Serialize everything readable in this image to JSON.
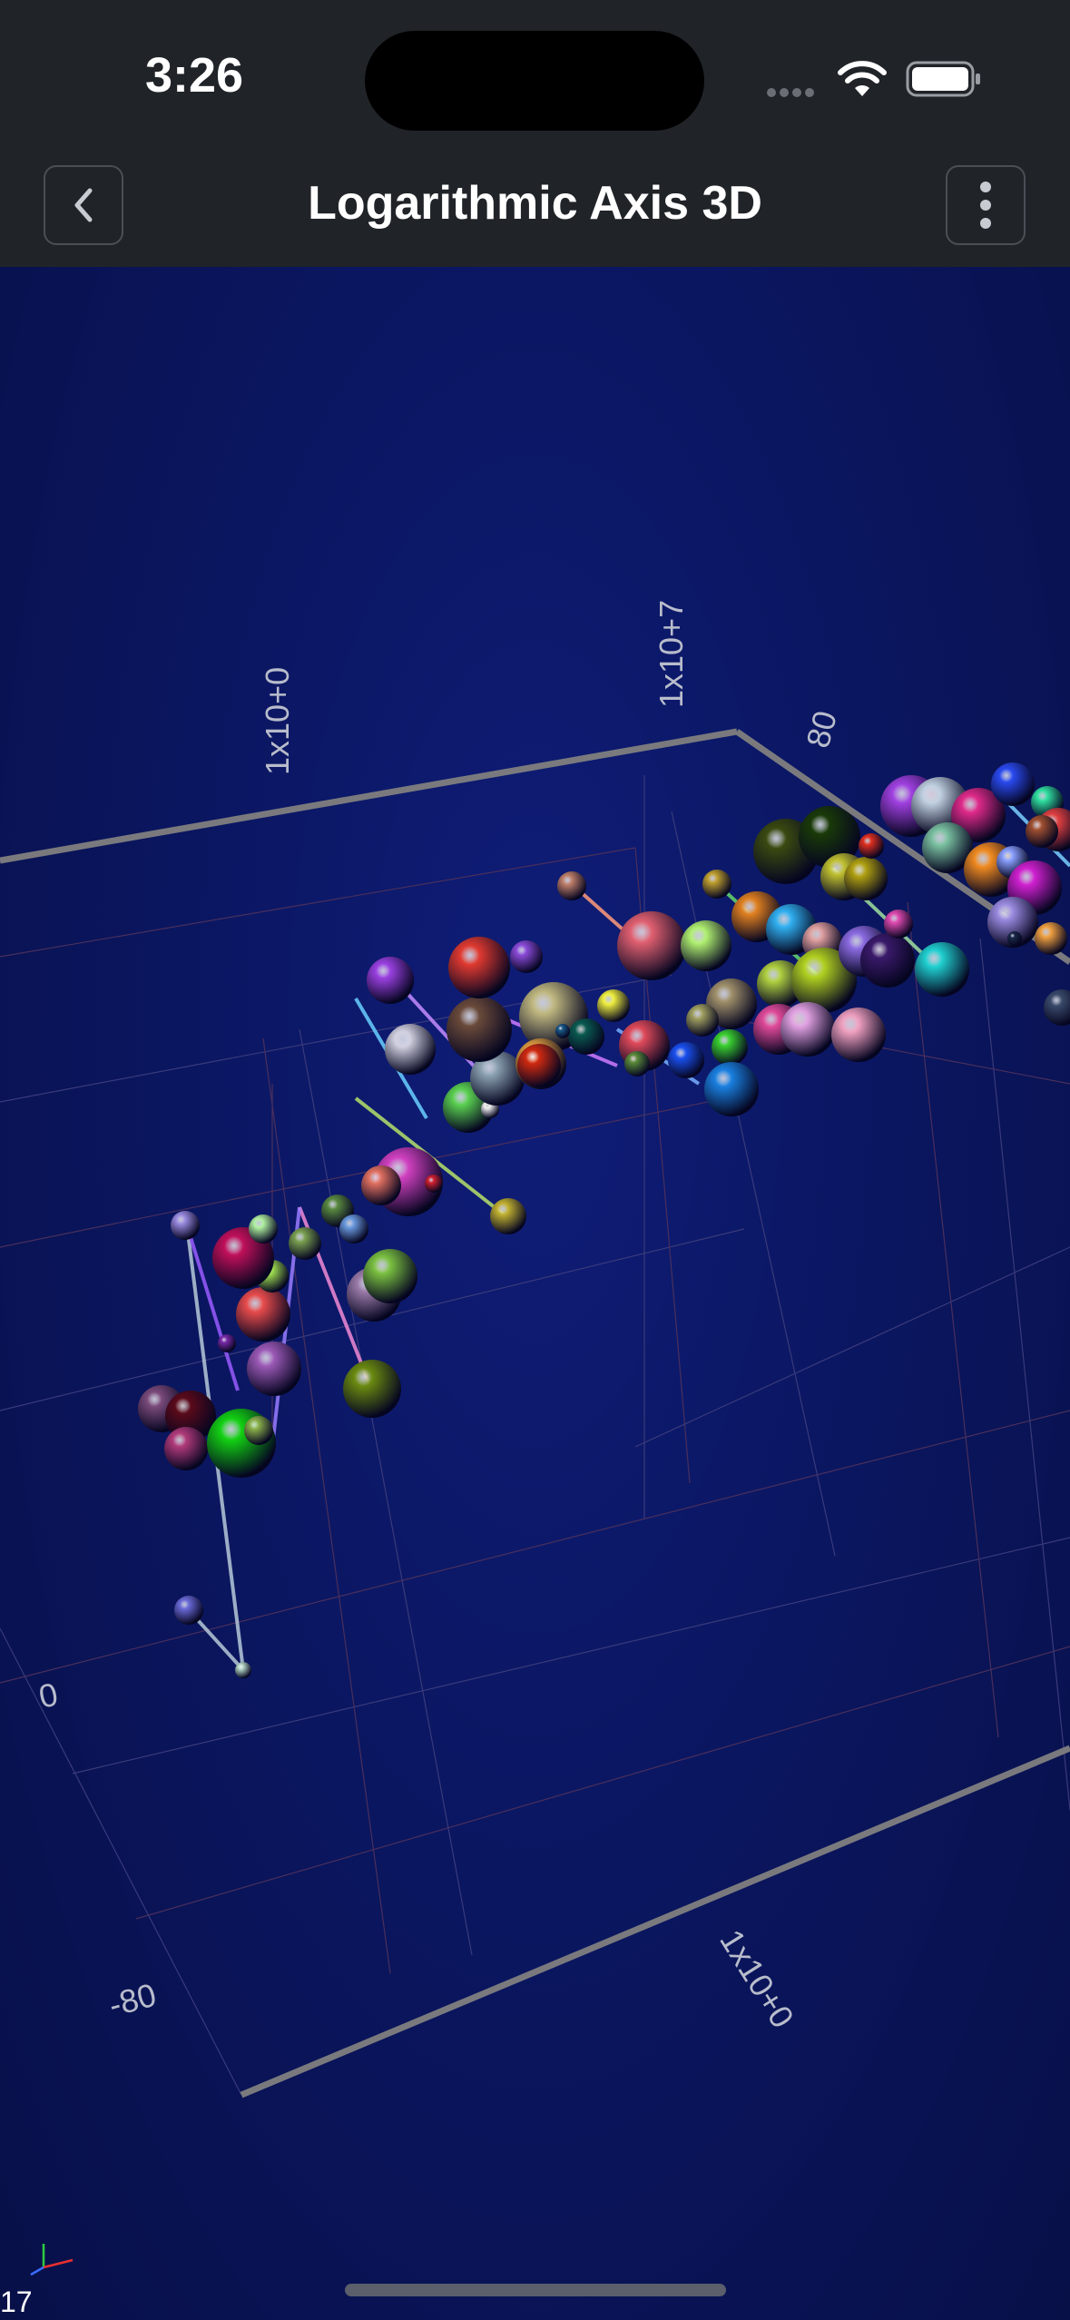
{
  "status_bar": {
    "time": "3:26"
  },
  "nav": {
    "title": "Logarithmic Axis 3D",
    "back_icon": "chevron-left-icon",
    "more_icon": "more-vertical-icon"
  },
  "fps": "17",
  "chart_data": {
    "type": "scatter",
    "title": "",
    "axes": {
      "x": {
        "scale": "log",
        "tick_labels": [
          "1x10+0"
        ]
      },
      "y": {
        "scale": "linear",
        "range": [
          -80,
          80
        ],
        "tick_labels": [
          "-80",
          "0",
          "80"
        ]
      },
      "z": {
        "scale": "log",
        "tick_labels": [
          "1x10+0",
          "1x10+7"
        ]
      }
    },
    "axis_labels": {
      "top_left": "1x10+0",
      "top_right": "1x10+7",
      "y_top": "80",
      "y_mid": "0",
      "y_bottom": "-80",
      "bottom_right": "1x10+0"
    },
    "grid": true,
    "series_note_colors": [
      "#8e44ad",
      "#e84c6b",
      "#2ecc71",
      "#3498db",
      "#f1c40f",
      "#e67e22"
    ]
  }
}
